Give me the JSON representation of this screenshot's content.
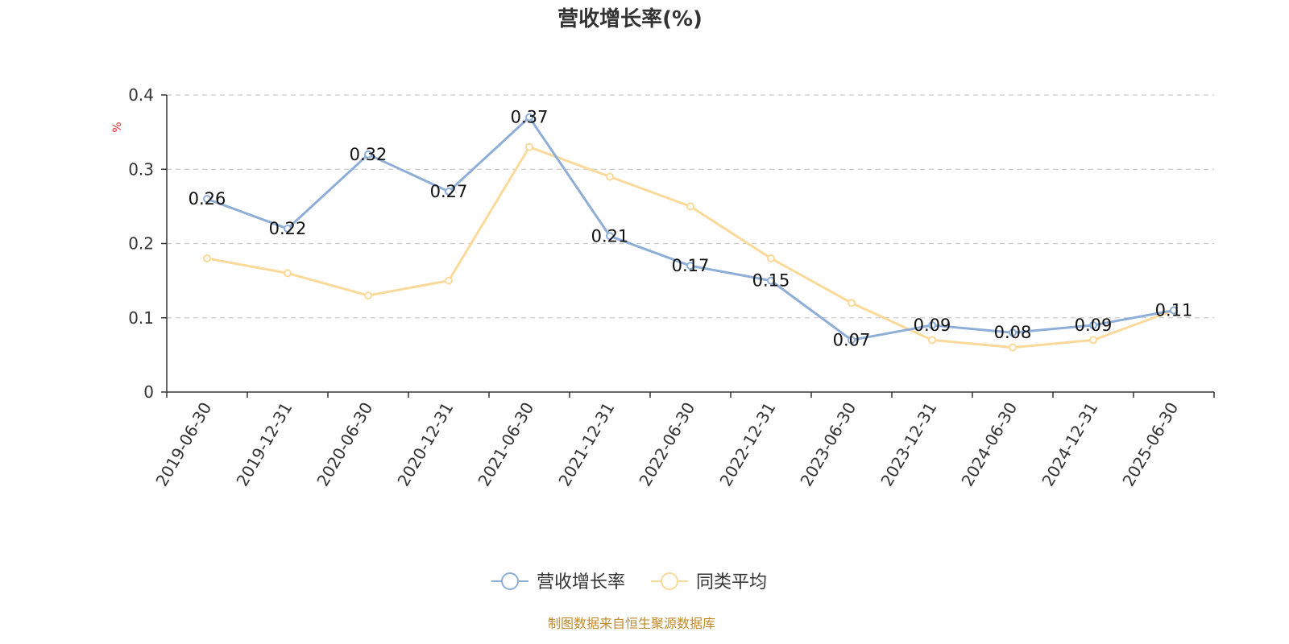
{
  "chart_data": {
    "type": "line",
    "title": "营收增长率(%)",
    "ylabel": "%",
    "ylim": [
      0,
      0.4
    ],
    "yticks": [
      0,
      0.1,
      0.2,
      0.3,
      0.4
    ],
    "ytick_labels": [
      "0",
      "0.1",
      "0.2",
      "0.3",
      "0.4"
    ],
    "grid": "horizontal-dashed",
    "legend_position": "bottom-center",
    "categories": [
      "2019-06-30",
      "2019-12-31",
      "2020-06-30",
      "2020-12-31",
      "2021-06-30",
      "2021-12-31",
      "2022-06-30",
      "2022-12-31",
      "2023-06-30",
      "2023-12-31",
      "2024-06-30",
      "2024-12-31",
      "2025-06-30"
    ],
    "series": [
      {
        "name": "营收增长率",
        "color": "#8eaed8",
        "show_labels": true,
        "values": [
          0.26,
          0.22,
          0.32,
          0.27,
          0.37,
          0.21,
          0.17,
          0.15,
          0.07,
          0.09,
          0.08,
          0.09,
          0.11
        ],
        "labels": [
          "0.26",
          "0.22",
          "0.32",
          "0.27",
          "0.37",
          "0.21",
          "0.17",
          "0.15",
          "0.07",
          "0.09",
          "0.08",
          "0.09",
          "0.11"
        ]
      },
      {
        "name": "同类平均",
        "color": "#fbd99a",
        "show_labels": false,
        "values": [
          0.18,
          0.16,
          0.13,
          0.15,
          0.33,
          0.29,
          0.25,
          0.18,
          0.12,
          0.07,
          0.06,
          0.07,
          0.11
        ]
      }
    ]
  },
  "colors": {
    "axis": "#333333",
    "grid": "#cccccc",
    "ylabel": "#e8262b",
    "source": "#c08a2d"
  },
  "source_text": "制图数据来自恒生聚源数据库"
}
